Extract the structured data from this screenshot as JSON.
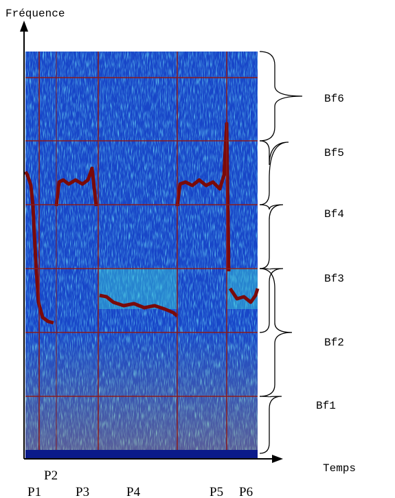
{
  "y_axis_label": "Fréquence",
  "x_axis_label": "Temps",
  "bands": [
    "Bf6",
    "Bf5",
    "Bf4",
    "Bf3",
    "Bf2",
    "Bf1"
  ],
  "periods": [
    "P1",
    "P2",
    "P3",
    "P4",
    "P5",
    "P6"
  ]
}
